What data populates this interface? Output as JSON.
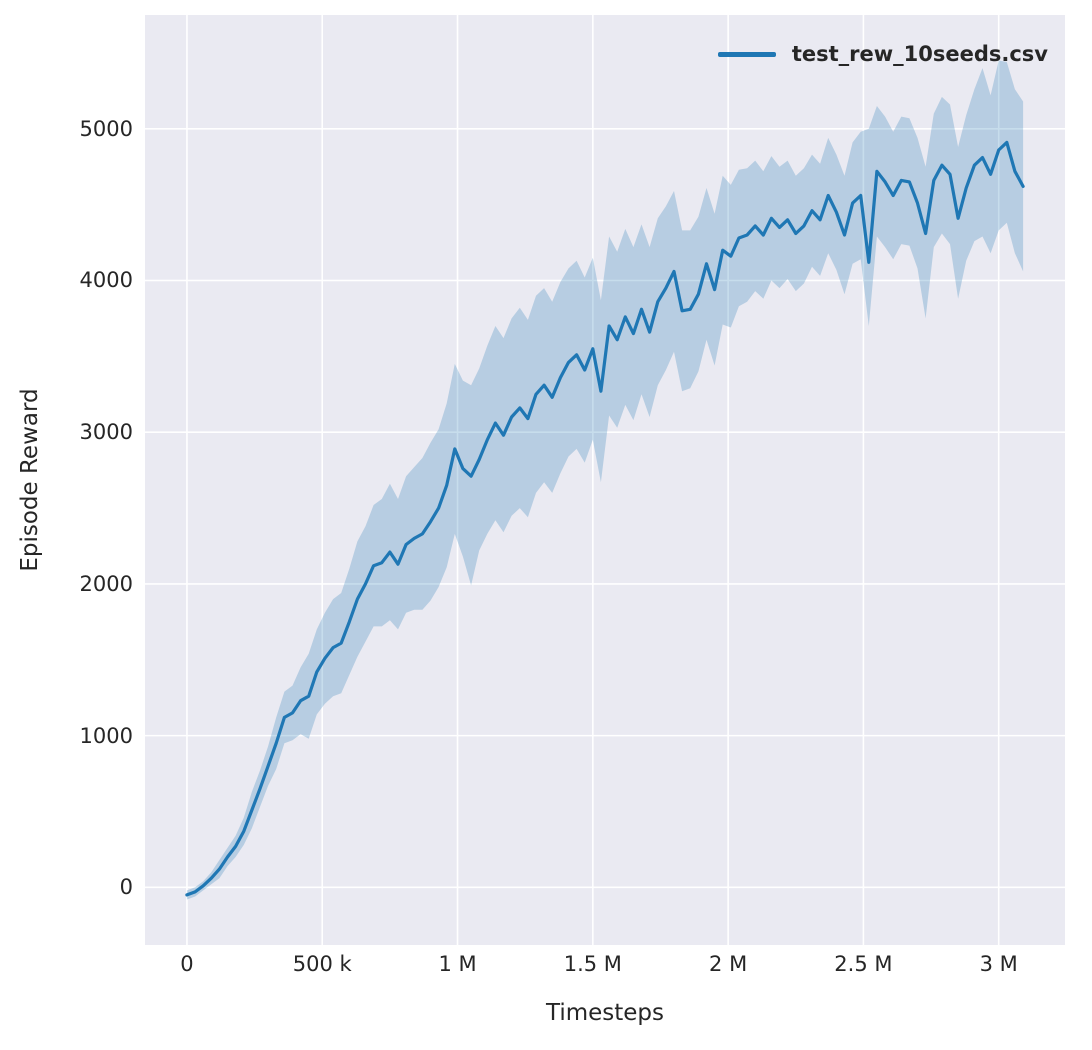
{
  "chart_data": {
    "type": "line",
    "title": "",
    "xlabel": "Timesteps",
    "ylabel": "Episode Reward",
    "grid": true,
    "legend": {
      "position": "upper right",
      "entries": [
        "test_rew_10seeds.csv"
      ]
    },
    "xlim": [
      -155000,
      3245000
    ],
    "ylim": [
      -380,
      5750
    ],
    "xticks": [
      0,
      500000,
      1000000,
      1500000,
      2000000,
      2500000,
      3000000
    ],
    "xtick_labels": [
      "0",
      "500 k",
      "1 M",
      "1.5 M",
      "2 M",
      "2.5 M",
      "3 M"
    ],
    "yticks": [
      0,
      1000,
      2000,
      3000,
      4000,
      5000
    ],
    "ytick_labels": [
      "0",
      "1000",
      "2000",
      "3000",
      "4000",
      "5000"
    ],
    "colors": {
      "line": "#1f77b4",
      "band": "rgba(31,119,180,0.25)",
      "axes_bg": "#eaeaf2",
      "grid": "#ffffff",
      "text": "#262626"
    },
    "x": [
      0,
      30000,
      60000,
      90000,
      120000,
      150000,
      180000,
      210000,
      240000,
      270000,
      300000,
      330000,
      360000,
      390000,
      420000,
      450000,
      480000,
      510000,
      540000,
      570000,
      600000,
      630000,
      660000,
      690000,
      720000,
      750000,
      780000,
      810000,
      840000,
      870000,
      900000,
      930000,
      960000,
      990000,
      1020000,
      1050000,
      1080000,
      1110000,
      1140000,
      1170000,
      1200000,
      1230000,
      1260000,
      1290000,
      1320000,
      1350000,
      1380000,
      1410000,
      1440000,
      1470000,
      1500000,
      1530000,
      1560000,
      1590000,
      1620000,
      1650000,
      1680000,
      1710000,
      1740000,
      1770000,
      1800000,
      1830000,
      1860000,
      1890000,
      1920000,
      1950000,
      1980000,
      2010000,
      2040000,
      2070000,
      2100000,
      2130000,
      2160000,
      2190000,
      2220000,
      2250000,
      2280000,
      2310000,
      2340000,
      2370000,
      2400000,
      2430000,
      2460000,
      2490000,
      2520000,
      2550000,
      2580000,
      2610000,
      2640000,
      2670000,
      2700000,
      2730000,
      2760000,
      2790000,
      2820000,
      2850000,
      2880000,
      2910000,
      2940000,
      2970000,
      3000000,
      3030000,
      3060000,
      3090000
    ],
    "series": [
      {
        "name": "test_rew_10seeds.csv",
        "values": [
          -50,
          -30,
          10,
          60,
          120,
          200,
          270,
          370,
          510,
          650,
          800,
          950,
          1120,
          1150,
          1230,
          1260,
          1420,
          1510,
          1580,
          1610,
          1750,
          1900,
          2000,
          2120,
          2140,
          2210,
          2130,
          2260,
          2300,
          2330,
          2410,
          2500,
          2650,
          2890,
          2760,
          2710,
          2820,
          2950,
          3060,
          2980,
          3100,
          3160,
          3090,
          3250,
          3310,
          3230,
          3360,
          3460,
          3510,
          3410,
          3550,
          3270,
          3700,
          3610,
          3760,
          3650,
          3810,
          3660,
          3860,
          3950,
          4060,
          3800,
          3810,
          3910,
          4110,
          3940,
          4200,
          4160,
          4280,
          4300,
          4360,
          4300,
          4410,
          4350,
          4400,
          4310,
          4360,
          4460,
          4400,
          4560,
          4450,
          4300,
          4510,
          4560,
          4120,
          4720,
          4650,
          4560,
          4660,
          4650,
          4510,
          4310,
          4660,
          4760,
          4700,
          4410,
          4610,
          4760,
          4810,
          4700,
          4860,
          4910,
          4720,
          4620
        ],
        "lower": [
          -80,
          -60,
          -20,
          20,
          60,
          140,
          200,
          280,
          390,
          530,
          670,
          780,
          950,
          970,
          1010,
          980,
          1140,
          1210,
          1260,
          1280,
          1400,
          1520,
          1620,
          1720,
          1720,
          1760,
          1700,
          1810,
          1830,
          1830,
          1890,
          1980,
          2110,
          2330,
          2180,
          1990,
          2220,
          2330,
          2420,
          2340,
          2450,
          2500,
          2440,
          2600,
          2670,
          2600,
          2730,
          2840,
          2890,
          2800,
          2950,
          2670,
          3110,
          3030,
          3180,
          3080,
          3250,
          3100,
          3310,
          3410,
          3530,
          3270,
          3290,
          3400,
          3610,
          3440,
          3710,
          3690,
          3830,
          3860,
          3930,
          3880,
          4000,
          3950,
          4010,
          3930,
          3980,
          4090,
          4030,
          4180,
          4070,
          3910,
          4110,
          4140,
          3700,
          4290,
          4220,
          4140,
          4240,
          4230,
          4080,
          3750,
          4220,
          4310,
          4240,
          3880,
          4130,
          4260,
          4290,
          4180,
          4330,
          4380,
          4180,
          4060
        ],
        "upper": [
          -20,
          0,
          40,
          100,
          180,
          260,
          340,
          460,
          630,
          770,
          930,
          1120,
          1290,
          1330,
          1450,
          1540,
          1700,
          1810,
          1900,
          1940,
          2100,
          2280,
          2380,
          2520,
          2560,
          2660,
          2560,
          2710,
          2770,
          2830,
          2930,
          3020,
          3190,
          3450,
          3340,
          3310,
          3420,
          3570,
          3700,
          3620,
          3750,
          3820,
          3740,
          3900,
          3950,
          3860,
          3990,
          4080,
          4130,
          4020,
          4150,
          3870,
          4290,
          4190,
          4340,
          4220,
          4370,
          4220,
          4410,
          4490,
          4590,
          4330,
          4330,
          4420,
          4610,
          4440,
          4690,
          4630,
          4730,
          4740,
          4790,
          4720,
          4820,
          4750,
          4790,
          4690,
          4740,
          4830,
          4770,
          4940,
          4830,
          4690,
          4910,
          4980,
          5000,
          5150,
          5080,
          4980,
          5080,
          5070,
          4940,
          4750,
          5100,
          5210,
          5160,
          4880,
          5090,
          5260,
          5400,
          5220,
          5450,
          5440,
          5260,
          5180
        ]
      }
    ]
  }
}
